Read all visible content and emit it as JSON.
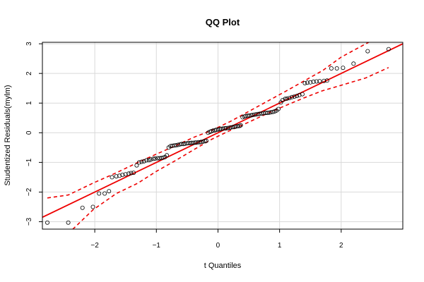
{
  "chart_data": {
    "type": "scatter",
    "title": "QQ Plot",
    "xlabel": "t Quantiles",
    "ylabel": "Studentized Residuals(mylm)",
    "xlim": [
      -2.85,
      3.0
    ],
    "ylim": [
      -3.25,
      3.05
    ],
    "xticks": [
      -2,
      -1,
      0,
      1,
      2
    ],
    "yticks": [
      -3,
      -2,
      -1,
      0,
      1,
      2,
      3
    ],
    "grid": true,
    "colors": {
      "points": "#000000",
      "fit_line": "#ee0000",
      "band": "#ee0000",
      "grid": "#d9d9d9"
    },
    "reference_line": {
      "intercept": 0.0,
      "slope": 1.0
    },
    "points": {
      "x": [
        -2.77,
        -2.43,
        -2.2,
        -2.03,
        -1.93,
        -1.84,
        -1.77,
        -1.72,
        -1.65,
        -1.6,
        -1.55,
        -1.5,
        -1.45,
        -1.41,
        -1.37,
        -1.32,
        -1.28,
        -1.24,
        -1.2,
        -1.16,
        -1.12,
        -1.09,
        -1.05,
        -1.02,
        -0.98,
        -0.95,
        -0.92,
        -0.89,
        -0.86,
        -0.83,
        -0.8,
        -0.77,
        -0.74,
        -0.71,
        -0.68,
        -0.65,
        -0.62,
        -0.59,
        -0.56,
        -0.54,
        -0.51,
        -0.48,
        -0.45,
        -0.43,
        -0.4,
        -0.37,
        -0.35,
        -0.32,
        -0.29,
        -0.27,
        -0.24,
        -0.21,
        -0.19,
        -0.16,
        -0.13,
        -0.11,
        -0.08,
        -0.05,
        -0.03,
        0.0,
        0.03,
        0.05,
        0.08,
        0.11,
        0.13,
        0.16,
        0.19,
        0.21,
        0.24,
        0.27,
        0.29,
        0.32,
        0.35,
        0.37,
        0.4,
        0.43,
        0.45,
        0.48,
        0.51,
        0.54,
        0.56,
        0.59,
        0.62,
        0.65,
        0.68,
        0.71,
        0.74,
        0.77,
        0.8,
        0.83,
        0.86,
        0.89,
        0.92,
        0.95,
        0.98,
        1.02,
        1.05,
        1.09,
        1.12,
        1.16,
        1.2,
        1.24,
        1.28,
        1.32,
        1.37,
        1.41,
        1.45,
        1.5,
        1.55,
        1.6,
        1.65,
        1.72,
        1.77,
        1.84,
        1.93,
        2.03,
        2.2,
        2.43,
        2.77
      ],
      "y": [
        -3.03,
        -3.03,
        -2.53,
        -2.5,
        -2.05,
        -2.05,
        -1.97,
        -1.5,
        -1.47,
        -1.45,
        -1.42,
        -1.4,
        -1.38,
        -1.36,
        -1.35,
        -1.1,
        -1.0,
        -0.98,
        -0.96,
        -0.93,
        -0.92,
        -0.9,
        -0.88,
        -0.87,
        -0.86,
        -0.86,
        -0.85,
        -0.84,
        -0.82,
        -0.76,
        -0.5,
        -0.45,
        -0.44,
        -0.43,
        -0.42,
        -0.41,
        -0.39,
        -0.38,
        -0.38,
        -0.37,
        -0.36,
        -0.35,
        -0.35,
        -0.34,
        -0.34,
        -0.33,
        -0.33,
        -0.32,
        -0.32,
        -0.31,
        -0.3,
        -0.28,
        -0.27,
        0.0,
        0.03,
        0.05,
        0.07,
        0.08,
        0.1,
        0.11,
        0.12,
        0.13,
        0.14,
        0.15,
        0.15,
        0.16,
        0.17,
        0.18,
        0.19,
        0.2,
        0.21,
        0.22,
        0.23,
        0.25,
        0.52,
        0.55,
        0.56,
        0.57,
        0.58,
        0.59,
        0.6,
        0.61,
        0.62,
        0.63,
        0.64,
        0.65,
        0.66,
        0.67,
        0.67,
        0.68,
        0.69,
        0.7,
        0.72,
        0.75,
        0.8,
        1.02,
        1.1,
        1.14,
        1.15,
        1.17,
        1.2,
        1.22,
        1.24,
        1.27,
        1.3,
        1.67,
        1.69,
        1.7,
        1.72,
        1.73,
        1.74,
        1.75,
        1.76,
        2.17,
        2.17,
        2.19,
        2.33,
        2.75,
        2.82
      ]
    },
    "confidence_band": {
      "x": [
        -2.77,
        -2.43,
        -2.03,
        -1.65,
        -1.3,
        -1.0,
        -0.7,
        -0.4,
        -0.1,
        0.2,
        0.5,
        0.8,
        1.1,
        1.4,
        1.7,
        2.0,
        2.4,
        2.77
      ],
      "lower": [
        -3.9,
        -3.4,
        -2.6,
        -2.05,
        -1.7,
        -1.3,
        -0.95,
        -0.58,
        -0.22,
        0.08,
        0.36,
        0.65,
        0.92,
        1.18,
        1.42,
        1.6,
        1.85,
        2.2
      ],
      "upper": [
        -2.2,
        -2.1,
        -1.7,
        -1.35,
        -1.0,
        -0.72,
        -0.45,
        -0.16,
        0.08,
        0.38,
        0.72,
        1.06,
        1.4,
        1.75,
        2.1,
        2.55,
        3.0,
        3.4
      ]
    }
  }
}
